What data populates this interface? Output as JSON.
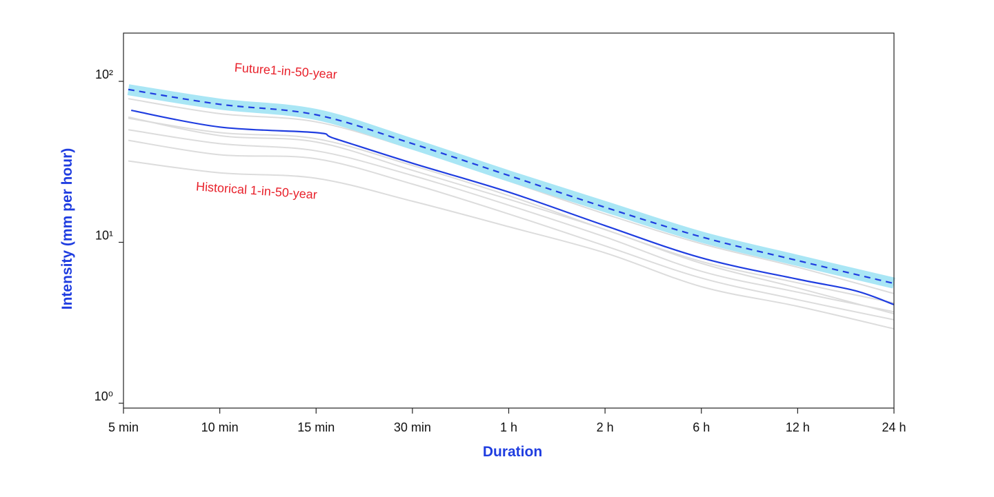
{
  "chart_data": {
    "type": "line",
    "xlabel": "Duration",
    "ylabel": "Intensity (mm per hour)",
    "yscale": "log",
    "ylim": [
      1,
      200
    ],
    "categories": [
      "5 min",
      "10 min",
      "15 min",
      "30 min",
      "1 h",
      "2 h",
      "6 h",
      "12 h",
      "24 h"
    ],
    "yticks": [
      {
        "value": 1,
        "label": "10⁰"
      },
      {
        "value": 10,
        "label": "10¹"
      },
      {
        "value": 100,
        "label": "10²"
      }
    ],
    "grid": false,
    "colors": {
      "axis_title": "#1f3de0",
      "annotation": "#e8202a",
      "future_band": "#a9e6f5",
      "future_line": "#1f3de0",
      "historical_line": "#1f3de0",
      "background_lines": "#dcdcdc",
      "axis": "#222222"
    },
    "future_band": {
      "lower": [
        [
          0.05,
          82
        ],
        [
          1,
          66
        ],
        [
          2,
          57
        ],
        [
          3,
          37
        ],
        [
          4,
          23
        ],
        [
          5,
          15
        ],
        [
          6,
          9.7
        ],
        [
          7,
          7.0
        ],
        [
          8,
          5.1
        ]
      ],
      "upper": [
        [
          0.05,
          96
        ],
        [
          1,
          79
        ],
        [
          2,
          68
        ],
        [
          3,
          45
        ],
        [
          4,
          29
        ],
        [
          5,
          18.5
        ],
        [
          6,
          12.0
        ],
        [
          7,
          8.5
        ],
        [
          8,
          6.1
        ]
      ]
    },
    "series": [
      {
        "role": "future",
        "style": "dashed",
        "points": [
          [
            0.05,
            89
          ],
          [
            1,
            72
          ],
          [
            2,
            62
          ],
          [
            3,
            41
          ],
          [
            4,
            26
          ],
          [
            5,
            16.5
          ],
          [
            6,
            10.8
          ],
          [
            7,
            7.7
          ],
          [
            8,
            5.55
          ]
        ]
      },
      {
        "role": "historical",
        "style": "solid",
        "points": [
          [
            0.08,
            66
          ],
          [
            1,
            52
          ],
          [
            2,
            48
          ],
          [
            2.2,
            44
          ],
          [
            3,
            31
          ],
          [
            4,
            20.5
          ],
          [
            5,
            12.7
          ],
          [
            6,
            8.0
          ],
          [
            7,
            5.9
          ],
          [
            7.6,
            5.0
          ],
          [
            8,
            4.1
          ]
        ]
      },
      {
        "role": "background",
        "points": [
          [
            0.05,
            78
          ],
          [
            1,
            63
          ],
          [
            2,
            56
          ],
          [
            3,
            38
          ],
          [
            4,
            24
          ],
          [
            5,
            15
          ],
          [
            6,
            9.8
          ],
          [
            7,
            7.0
          ],
          [
            8,
            4.8
          ]
        ]
      },
      {
        "role": "background",
        "points": [
          [
            0.05,
            59
          ],
          [
            1,
            48
          ],
          [
            2,
            44
          ],
          [
            3,
            30
          ],
          [
            4,
            19.5
          ],
          [
            5,
            12
          ],
          [
            6,
            7.6
          ],
          [
            7,
            5.6
          ],
          [
            8,
            4.2
          ]
        ]
      },
      {
        "role": "background",
        "points": [
          [
            0.05,
            50
          ],
          [
            1,
            41
          ],
          [
            2,
            37
          ],
          [
            3,
            26
          ],
          [
            4,
            17
          ],
          [
            5,
            10.8
          ],
          [
            6,
            6.6
          ],
          [
            7,
            4.9
          ],
          [
            8,
            3.7
          ]
        ]
      },
      {
        "role": "background",
        "points": [
          [
            0.05,
            43
          ],
          [
            1,
            35
          ],
          [
            2,
            33
          ],
          [
            3,
            23
          ],
          [
            4,
            15
          ],
          [
            5,
            9.5
          ],
          [
            6,
            6.0
          ],
          [
            7,
            4.4
          ],
          [
            8,
            3.3
          ]
        ]
      },
      {
        "role": "background",
        "points": [
          [
            0.05,
            32
          ],
          [
            1,
            27
          ],
          [
            2,
            25
          ],
          [
            3,
            18
          ],
          [
            4,
            12.5
          ],
          [
            5,
            8.6
          ],
          [
            6,
            5.3
          ],
          [
            7,
            4.0
          ],
          [
            8,
            2.9
          ]
        ]
      },
      {
        "role": "background",
        "points": [
          [
            0.05,
            60
          ],
          [
            1,
            46
          ],
          [
            2,
            42
          ],
          [
            3,
            28
          ],
          [
            4,
            18.5
          ],
          [
            5,
            12
          ],
          [
            6,
            7.4
          ],
          [
            7,
            5.2
          ],
          [
            8,
            3.6
          ]
        ]
      }
    ],
    "annotations": [
      {
        "text": "Future1-in-50-year",
        "x": 1.15,
        "y": 115
      },
      {
        "text": "Historical 1-in-50-year",
        "x": 0.75,
        "y": 21
      }
    ]
  }
}
